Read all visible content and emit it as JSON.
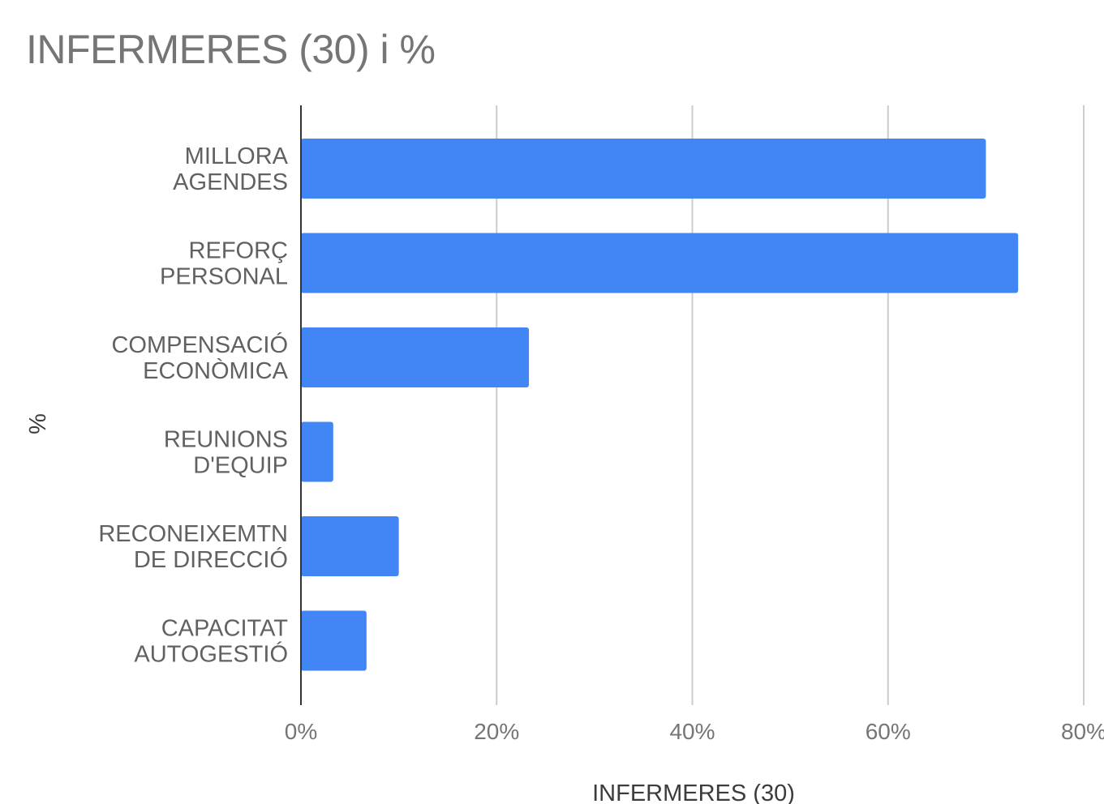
{
  "chart_data": {
    "type": "bar",
    "orientation": "horizontal",
    "title": "INFERMERES (30) i %",
    "xlabel": "INFERMERES (30)",
    "ylabel": "%",
    "categories": [
      [
        "MILLORA",
        "AGENDES"
      ],
      [
        "REFORÇ",
        "PERSONAL"
      ],
      [
        "COMPENSACIÓ",
        "ECONÒMICA"
      ],
      [
        "REUNIONS",
        "D'EQUIP"
      ],
      [
        "RECONEIXEMTN",
        "DE DIRECCIÓ"
      ],
      [
        "CAPACITAT",
        "AUTOGESTIÓ"
      ]
    ],
    "series": [
      {
        "values": [
          70,
          73.3,
          23.3,
          3.3,
          10,
          6.7
        ]
      }
    ],
    "xlim": [
      0,
      80
    ],
    "xticks": [
      0,
      20,
      40,
      60,
      80
    ],
    "tick_suffix": "%",
    "grid": true,
    "legend": "none",
    "bar_color": "#4285f4",
    "grid_color": "#cccccc",
    "axis_color": "#333333"
  }
}
